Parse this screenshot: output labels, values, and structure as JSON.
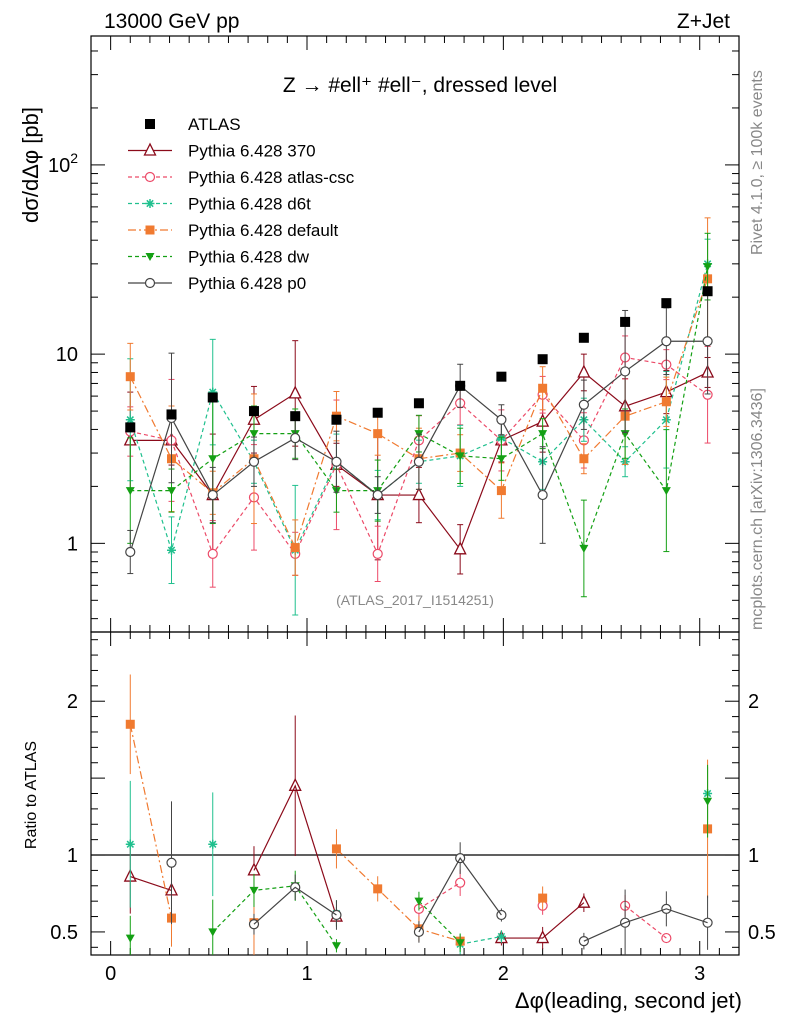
{
  "header": {
    "left": "13000 GeV pp",
    "right": "Z+Jet"
  },
  "side": {
    "top": "Rivet 4.1.0, ≥ 100k events",
    "bottom": "mcplots.cern.ch [arXiv:1306.3436]"
  },
  "watermark": "(ATLAS_2017_I1514251)",
  "chart_data": {
    "type": "line",
    "title": "Z → #ell⁺ #ell⁻, dressed level",
    "ylabel": "dσ/dΔφ [pb]",
    "xlabel": "Δφ(leading, second jet)",
    "ratio_ylabel": "Ratio to ATLAS",
    "xlim": [
      -0.1,
      3.2
    ],
    "ylim": [
      0.34,
      480
    ],
    "ratio_ylim": [
      0.35,
      2.45
    ],
    "x_ticks": [
      "0",
      "1",
      "2",
      "3"
    ],
    "y_ticks": [
      {
        "v": 1,
        "t": "1"
      },
      {
        "v": 10,
        "t": "10"
      },
      {
        "v": 100,
        "t": "10",
        "sup": "2"
      }
    ],
    "ratio_ticks": [
      "0.5",
      "1",
      "2"
    ],
    "x": [
      0.1,
      0.31,
      0.52,
      0.73,
      0.94,
      1.15,
      1.36,
      1.57,
      1.78,
      1.99,
      2.2,
      2.41,
      2.62,
      2.83,
      3.04
    ],
    "data": {
      "name": "ATLAS",
      "values": [
        4.1,
        4.8,
        5.9,
        5.0,
        4.7,
        4.5,
        4.9,
        5.5,
        6.8,
        7.6,
        9.4,
        12.2,
        14.8,
        18.6,
        21.5
      ]
    },
    "series": [
      {
        "name": "Pythia 6.428 370",
        "color": "#8b0a1a",
        "dash": "",
        "marker": "triangle-open",
        "values": [
          3.5,
          3.5,
          1.8,
          4.5,
          6.2,
          2.6,
          1.8,
          1.8,
          0.93,
          3.5,
          4.4,
          8.0,
          5.3,
          6.3,
          8.0
        ],
        "ratio": [
          0.86,
          0.77,
          null,
          0.9,
          1.45,
          0.6,
          null,
          null,
          null,
          0.46,
          0.46,
          0.69,
          null,
          null,
          null
        ]
      },
      {
        "name": "Pythia 6.428 atlas-csc",
        "color": "#ec4a68",
        "dash": "4,3",
        "marker": "circle-open",
        "values": [
          3.9,
          3.5,
          0.88,
          1.75,
          0.88,
          2.6,
          0.88,
          3.5,
          5.5,
          3.5,
          6.1,
          3.5,
          9.6,
          8.8,
          6.1
        ],
        "ratio": [
          null,
          null,
          null,
          null,
          null,
          null,
          null,
          0.65,
          0.82,
          null,
          0.67,
          null,
          0.67,
          0.46,
          null
        ]
      },
      {
        "name": "Pythia 6.428 d6t",
        "color": "#20c08e",
        "dash": "4,3",
        "marker": "star",
        "values": [
          4.5,
          0.92,
          6.3,
          2.7,
          0.92,
          2.7,
          1.8,
          2.7,
          2.9,
          3.6,
          2.7,
          4.5,
          2.7,
          4.5,
          30
        ],
        "ratio": [
          1.07,
          null,
          1.07,
          null,
          null,
          0.62,
          null,
          null,
          0.42,
          0.47,
          null,
          null,
          null,
          null,
          1.4
        ]
      },
      {
        "name": "Pythia 6.428 default",
        "color": "#f07a30",
        "dash": "8,3,2,3",
        "marker": "square",
        "values": [
          7.6,
          2.8,
          1.85,
          2.8,
          0.95,
          4.7,
          3.8,
          2.8,
          3.0,
          1.9,
          6.6,
          2.8,
          4.7,
          5.6,
          25
        ],
        "ratio": [
          1.85,
          0.59,
          null,
          0.56,
          null,
          1.04,
          0.78,
          0.52,
          0.44,
          null,
          0.72,
          null,
          null,
          null,
          1.17
        ]
      },
      {
        "name": "Pythia 6.428 dw",
        "color": "#14a014",
        "dash": "4,3",
        "marker": "triangle-down",
        "values": [
          1.9,
          1.9,
          2.8,
          3.8,
          3.8,
          1.9,
          1.9,
          3.8,
          2.9,
          2.8,
          3.8,
          0.94,
          3.8,
          1.9,
          29
        ],
        "ratio": [
          0.46,
          null,
          0.5,
          0.77,
          0.8,
          0.41,
          null,
          0.7,
          0.43,
          null,
          null,
          null,
          null,
          null,
          1.35
        ]
      },
      {
        "name": "Pythia 6.428 p0",
        "color": "#444444",
        "dash": "",
        "marker": "circle-open",
        "values": [
          0.9,
          4.6,
          1.8,
          2.7,
          3.6,
          2.7,
          1.8,
          2.7,
          6.8,
          4.5,
          1.8,
          5.4,
          8.1,
          11.7,
          11.7
        ],
        "ratio": [
          null,
          0.95,
          null,
          0.55,
          0.79,
          0.61,
          null,
          0.5,
          0.98,
          0.61,
          null,
          0.44,
          0.56,
          0.65,
          0.56
        ]
      }
    ]
  }
}
